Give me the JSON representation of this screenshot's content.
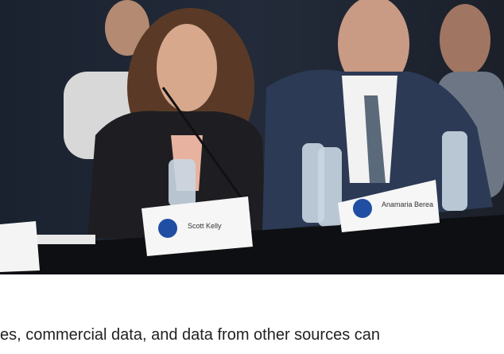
{
  "photo": {
    "name_cards": [
      "Scott Kelly",
      "Anamaria Berea"
    ]
  },
  "body": {
    "text": "es, commercial data, and data from other sources can"
  }
}
